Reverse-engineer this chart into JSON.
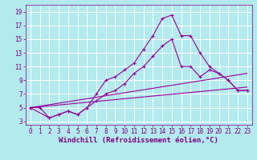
{
  "xlabel": "Windchill (Refroidissement éolien,°C)",
  "background_color": "#b2eaee",
  "grid_color": "#c8e8ec",
  "line_color": "#990099",
  "xlim": [
    -0.5,
    23.5
  ],
  "ylim": [
    2.5,
    20
  ],
  "xticks": [
    0,
    1,
    2,
    3,
    4,
    5,
    6,
    7,
    8,
    9,
    10,
    11,
    12,
    13,
    14,
    15,
    16,
    17,
    18,
    19,
    20,
    21,
    22,
    23
  ],
  "yticks": [
    3,
    5,
    7,
    9,
    11,
    13,
    15,
    17,
    19
  ],
  "font_color": "#800080",
  "tick_fontsize": 5.5,
  "xlabel_fontsize": 6.5,
  "curve1_x": [
    0,
    1,
    2,
    3,
    4,
    5,
    6,
    7,
    8,
    9,
    10,
    11,
    12,
    13,
    14,
    15,
    16,
    17,
    18,
    19,
    20,
    21,
    22,
    23
  ],
  "curve1_y": [
    5,
    5,
    3.5,
    4,
    4.5,
    4,
    5,
    7,
    9,
    9.5,
    10.5,
    11.5,
    13.5,
    15.5,
    18,
    18.5,
    15.5,
    15.5,
    13,
    11,
    10,
    9,
    7.5,
    7.5
  ],
  "curve2_x": [
    0,
    2,
    3,
    4,
    5,
    6,
    7,
    8,
    9,
    10,
    11,
    12,
    13,
    14,
    15,
    16,
    17,
    18,
    19,
    20,
    21,
    22,
    23
  ],
  "curve2_y": [
    5,
    3.5,
    4,
    4.5,
    4,
    5,
    6,
    7,
    7.5,
    8.5,
    10,
    11,
    12.5,
    14,
    15,
    11,
    11,
    9.5,
    10.5,
    10,
    9,
    7.5,
    7.5
  ],
  "curve3_x": [
    0,
    23
  ],
  "curve3_y": [
    5,
    10
  ],
  "curve4_x": [
    0,
    23
  ],
  "curve4_y": [
    5,
    8
  ]
}
